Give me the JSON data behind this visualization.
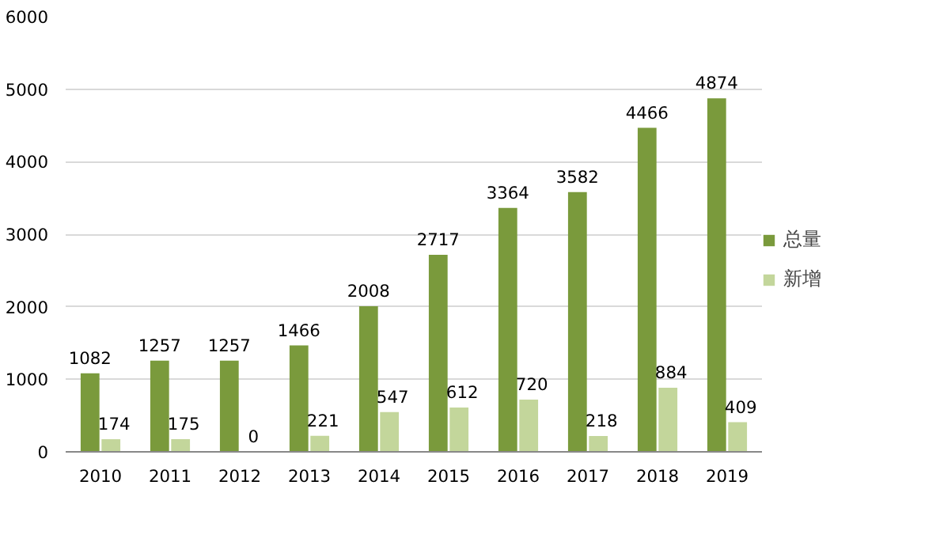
{
  "chart_data": {
    "type": "bar",
    "categories": [
      "2010",
      "2011",
      "2012",
      "2013",
      "2014",
      "2015",
      "2016",
      "2017",
      "2018",
      "2019"
    ],
    "series": [
      {
        "name": "总量",
        "color": "#7a9a3c",
        "values": [
          1082,
          1257,
          1257,
          1466,
          2008,
          2717,
          3364,
          3582,
          4466,
          4874
        ]
      },
      {
        "name": "新增",
        "color": "#c3d69b",
        "values": [
          174,
          175,
          0,
          221,
          547,
          612,
          720,
          218,
          884,
          409
        ]
      }
    ],
    "ylim": [
      0,
      6000
    ],
    "yticks": [
      0,
      1000,
      2000,
      3000,
      4000,
      5000,
      6000
    ],
    "grid": "y",
    "legend": "right",
    "data_labels": true
  }
}
